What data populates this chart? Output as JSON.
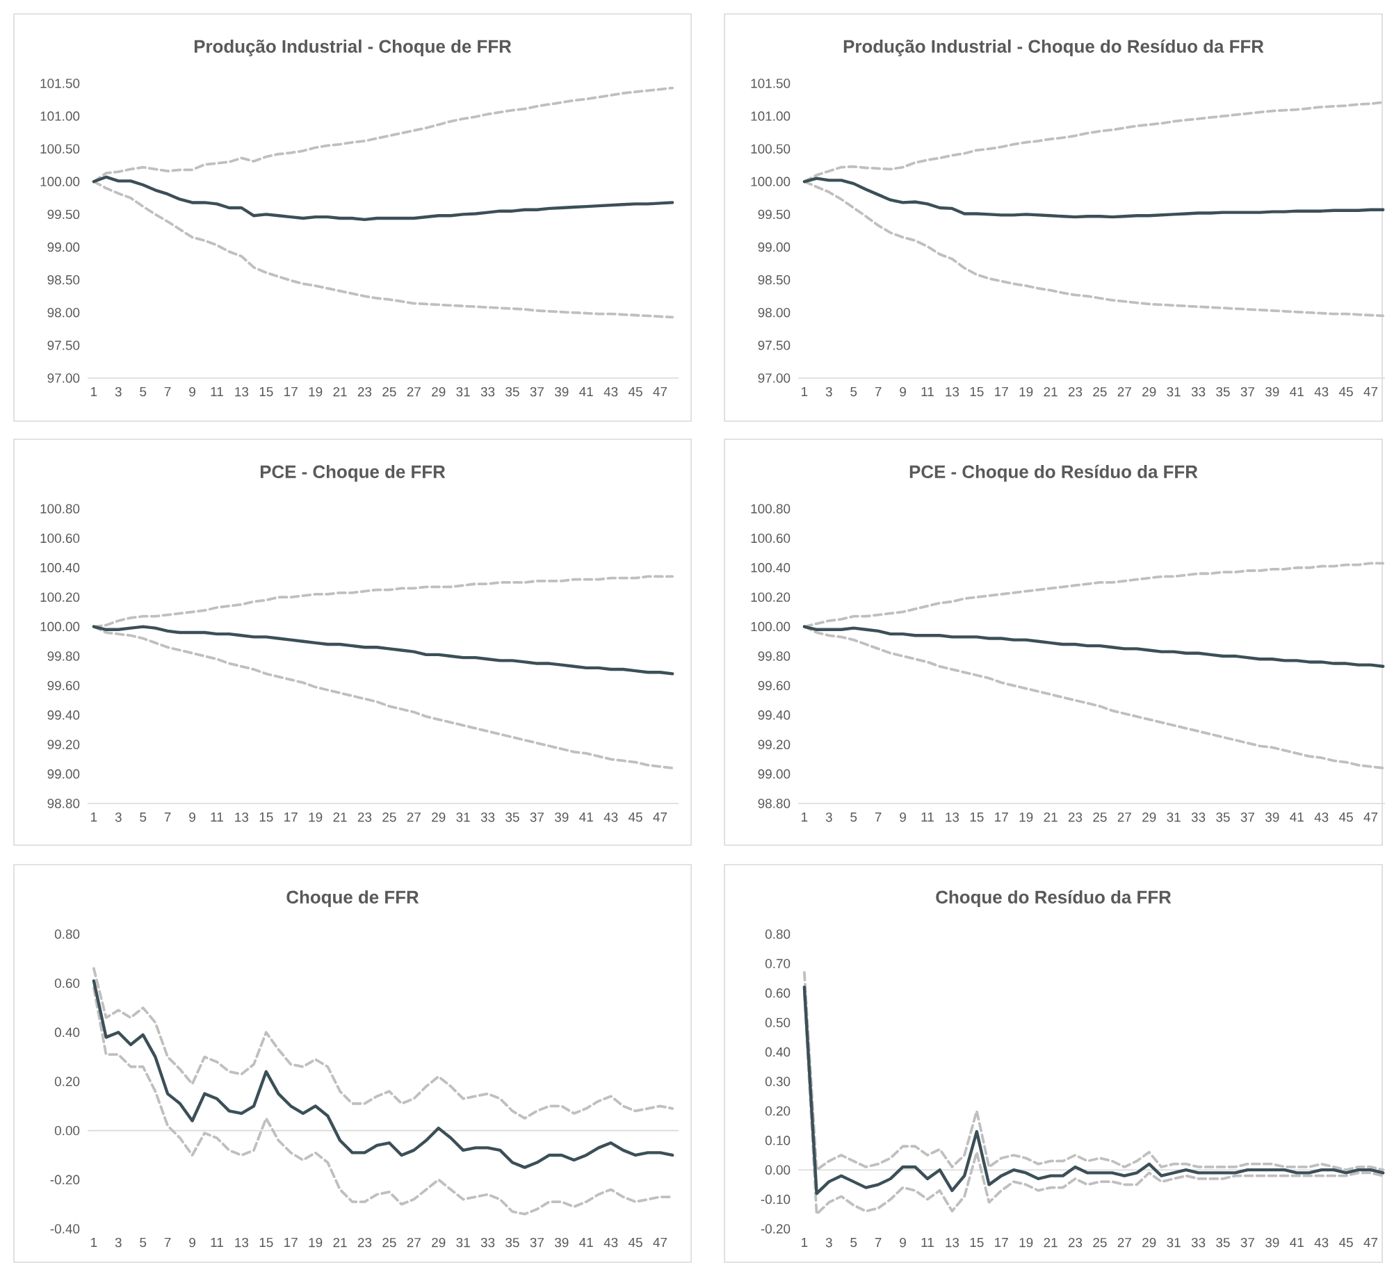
{
  "chart_data": [
    {
      "type": "line",
      "title": "Produção Industrial - Choque de FFR",
      "categories": [
        "1",
        null,
        "3",
        null,
        "5",
        null,
        "7",
        null,
        "9",
        null,
        "11",
        null,
        "13",
        null,
        "15",
        null,
        "17",
        null,
        "19",
        null,
        "21",
        null,
        "23",
        null,
        "25",
        null,
        "27",
        null,
        "29",
        null,
        "31",
        null,
        "33",
        null,
        "35",
        null,
        "37",
        null,
        "39",
        null,
        "41",
        null,
        "43",
        null,
        "45",
        null,
        "47",
        null
      ],
      "ylim": [
        97,
        101.5
      ],
      "yticks": [
        {
          "value": 97,
          "label": "97.00"
        },
        {
          "value": 97.5,
          "label": "97.50"
        },
        {
          "value": 98,
          "label": "98.00"
        },
        {
          "value": 98.5,
          "label": "98.50"
        },
        {
          "value": 99,
          "label": "99.00"
        },
        {
          "value": 99.5,
          "label": "99.50"
        },
        {
          "value": 100,
          "label": "100.00"
        },
        {
          "value": 100.5,
          "label": "100.50"
        },
        {
          "value": 101,
          "label": "101.00"
        },
        {
          "value": 101.5,
          "label": "101.50"
        }
      ],
      "series": [
        {
          "color": "#bfbfbf",
          "line_style": "dashed",
          "values": [
            100,
            100.13,
            100.15,
            100.19,
            100.22,
            100.19,
            100.16,
            100.18,
            100.18,
            100.26,
            100.28,
            100.3,
            100.36,
            100.31,
            100.38,
            100.42,
            100.44,
            100.47,
            100.52,
            100.55,
            100.57,
            100.6,
            100.62,
            100.66,
            100.7,
            100.74,
            100.78,
            100.82,
            100.87,
            100.92,
            100.96,
            100.99,
            101.03,
            101.06,
            101.09,
            101.11,
            101.15,
            101.18,
            101.21,
            101.24,
            101.26,
            101.29,
            101.32,
            101.35,
            101.37,
            101.39,
            101.41,
            101.43
          ]
        },
        {
          "color": "#bfbfbf",
          "line_style": "dashed",
          "values": [
            100,
            99.9,
            99.82,
            99.75,
            99.62,
            99.5,
            99.39,
            99.27,
            99.15,
            99.1,
            99.03,
            98.93,
            98.86,
            98.69,
            98.61,
            98.55,
            98.49,
            98.44,
            98.41,
            98.37,
            98.33,
            98.29,
            98.25,
            98.22,
            98.2,
            98.17,
            98.14,
            98.13,
            98.12,
            98.11,
            98.1,
            98.09,
            98.08,
            98.07,
            98.06,
            98.05,
            98.03,
            98.02,
            98.01,
            98.0,
            97.99,
            97.98,
            97.98,
            97.97,
            97.96,
            97.95,
            97.94,
            97.93
          ]
        },
        {
          "color": "#3b4f57",
          "line_style": "solid",
          "values": [
            100,
            100.07,
            100.01,
            100.01,
            99.95,
            99.87,
            99.81,
            99.73,
            99.68,
            99.68,
            99.66,
            99.6,
            99.6,
            99.48,
            99.5,
            99.48,
            99.46,
            99.44,
            99.46,
            99.46,
            99.44,
            99.44,
            99.42,
            99.44,
            99.44,
            99.44,
            99.44,
            99.46,
            99.48,
            99.48,
            99.5,
            99.51,
            99.53,
            99.55,
            99.55,
            99.57,
            99.57,
            99.59,
            99.6,
            99.61,
            99.62,
            99.63,
            99.64,
            99.65,
            99.66,
            99.66,
            99.67,
            99.68
          ]
        }
      ]
    },
    {
      "type": "line",
      "title": "Produção Industrial - Choque do Resíduo da FFR",
      "categories": [
        "1",
        null,
        "3",
        null,
        "5",
        null,
        "7",
        null,
        "9",
        null,
        "11",
        null,
        "13",
        null,
        "15",
        null,
        "17",
        null,
        "19",
        null,
        "21",
        null,
        "23",
        null,
        "25",
        null,
        "27",
        null,
        "29",
        null,
        "31",
        null,
        "33",
        null,
        "35",
        null,
        "37",
        null,
        "39",
        null,
        "41",
        null,
        "43",
        null,
        "45",
        null,
        "47",
        null
      ],
      "ylim": [
        97,
        101.5
      ],
      "yticks": [
        {
          "value": 97,
          "label": "97.00"
        },
        {
          "value": 97.5,
          "label": "97.50"
        },
        {
          "value": 98,
          "label": "98.00"
        },
        {
          "value": 98.5,
          "label": "98.50"
        },
        {
          "value": 99,
          "label": "99.00"
        },
        {
          "value": 99.5,
          "label": "99.50"
        },
        {
          "value": 100,
          "label": "100.00"
        },
        {
          "value": 100.5,
          "label": "100.50"
        },
        {
          "value": 101,
          "label": "101.00"
        },
        {
          "value": 101.5,
          "label": "101.50"
        }
      ],
      "series": [
        {
          "color": "#bfbfbf",
          "line_style": "dashed",
          "values": [
            100,
            100.1,
            100.16,
            100.22,
            100.23,
            100.21,
            100.2,
            100.19,
            100.22,
            100.29,
            100.33,
            100.36,
            100.4,
            100.43,
            100.48,
            100.5,
            100.53,
            100.57,
            100.6,
            100.62,
            100.65,
            100.67,
            100.7,
            100.74,
            100.77,
            100.79,
            100.82,
            100.85,
            100.87,
            100.89,
            100.92,
            100.94,
            100.96,
            100.98,
            101.0,
            101.02,
            101.04,
            101.06,
            101.08,
            101.09,
            101.1,
            101.12,
            101.14,
            101.15,
            101.16,
            101.18,
            101.19,
            101.21
          ]
        },
        {
          "color": "#bfbfbf",
          "line_style": "dashed",
          "values": [
            100,
            99.92,
            99.84,
            99.73,
            99.6,
            99.47,
            99.33,
            99.22,
            99.15,
            99.1,
            99.01,
            98.89,
            98.82,
            98.68,
            98.58,
            98.52,
            98.48,
            98.44,
            98.41,
            98.37,
            98.34,
            98.3,
            98.27,
            98.25,
            98.22,
            98.19,
            98.17,
            98.15,
            98.13,
            98.12,
            98.11,
            98.1,
            98.09,
            98.08,
            98.07,
            98.06,
            98.05,
            98.04,
            98.03,
            98.02,
            98.01,
            98.0,
            97.99,
            97.98,
            97.98,
            97.97,
            97.96,
            97.95
          ]
        },
        {
          "color": "#3b4f57",
          "line_style": "solid",
          "values": [
            100,
            100.05,
            100.02,
            100.02,
            99.97,
            99.88,
            99.8,
            99.72,
            99.68,
            99.69,
            99.66,
            99.6,
            99.59,
            99.51,
            99.51,
            99.5,
            99.49,
            99.49,
            99.5,
            99.49,
            99.48,
            99.47,
            99.46,
            99.47,
            99.47,
            99.46,
            99.47,
            99.48,
            99.48,
            99.49,
            99.5,
            99.51,
            99.52,
            99.52,
            99.53,
            99.53,
            99.53,
            99.53,
            99.54,
            99.54,
            99.55,
            99.55,
            99.55,
            99.56,
            99.56,
            99.56,
            99.57,
            99.57
          ]
        }
      ]
    },
    {
      "type": "line",
      "title": "PCE - Choque de FFR",
      "categories": [
        "1",
        null,
        "3",
        null,
        "5",
        null,
        "7",
        null,
        "9",
        null,
        "11",
        null,
        "13",
        null,
        "15",
        null,
        "17",
        null,
        "19",
        null,
        "21",
        null,
        "23",
        null,
        "25",
        null,
        "27",
        null,
        "29",
        null,
        "31",
        null,
        "33",
        null,
        "35",
        null,
        "37",
        null,
        "39",
        null,
        "41",
        null,
        "43",
        null,
        "45",
        null,
        "47",
        null
      ],
      "ylim": [
        98.8,
        100.8
      ],
      "yticks": [
        {
          "value": 98.8,
          "label": "98.80"
        },
        {
          "value": 99,
          "label": "99.00"
        },
        {
          "value": 99.2,
          "label": "99.20"
        },
        {
          "value": 99.4,
          "label": "99.40"
        },
        {
          "value": 99.6,
          "label": "99.60"
        },
        {
          "value": 99.8,
          "label": "99.80"
        },
        {
          "value": 100,
          "label": "100.00"
        },
        {
          "value": 100.2,
          "label": "100.20"
        },
        {
          "value": 100.4,
          "label": "100.40"
        },
        {
          "value": 100.6,
          "label": "100.60"
        },
        {
          "value": 100.8,
          "label": "100.80"
        }
      ],
      "series": [
        {
          "color": "#bfbfbf",
          "line_style": "dashed",
          "values": [
            100,
            100.01,
            100.04,
            100.06,
            100.07,
            100.07,
            100.08,
            100.09,
            100.1,
            100.11,
            100.13,
            100.14,
            100.15,
            100.17,
            100.18,
            100.2,
            100.2,
            100.21,
            100.22,
            100.22,
            100.23,
            100.23,
            100.24,
            100.25,
            100.25,
            100.26,
            100.26,
            100.27,
            100.27,
            100.27,
            100.28,
            100.29,
            100.29,
            100.3,
            100.3,
            100.3,
            100.31,
            100.31,
            100.31,
            100.32,
            100.32,
            100.32,
            100.33,
            100.33,
            100.33,
            100.34,
            100.34,
            100.34
          ]
        },
        {
          "color": "#bfbfbf",
          "line_style": "dashed",
          "values": [
            100,
            99.96,
            99.95,
            99.94,
            99.92,
            99.89,
            99.86,
            99.84,
            99.82,
            99.8,
            99.78,
            99.75,
            99.73,
            99.71,
            99.68,
            99.66,
            99.64,
            99.62,
            99.59,
            99.57,
            99.55,
            99.53,
            99.51,
            99.49,
            99.46,
            99.44,
            99.42,
            99.39,
            99.37,
            99.35,
            99.33,
            99.31,
            99.29,
            99.27,
            99.25,
            99.23,
            99.21,
            99.19,
            99.17,
            99.15,
            99.14,
            99.12,
            99.1,
            99.09,
            99.08,
            99.06,
            99.05,
            99.04
          ]
        },
        {
          "color": "#3b4f57",
          "line_style": "solid",
          "values": [
            100,
            99.98,
            99.98,
            99.99,
            100.0,
            99.99,
            99.97,
            99.96,
            99.96,
            99.96,
            99.95,
            99.95,
            99.94,
            99.93,
            99.93,
            99.92,
            99.91,
            99.9,
            99.89,
            99.88,
            99.88,
            99.87,
            99.86,
            99.86,
            99.85,
            99.84,
            99.83,
            99.81,
            99.81,
            99.8,
            99.79,
            99.79,
            99.78,
            99.77,
            99.77,
            99.76,
            99.75,
            99.75,
            99.74,
            99.73,
            99.72,
            99.72,
            99.71,
            99.71,
            99.7,
            99.69,
            99.69,
            99.68
          ]
        }
      ]
    },
    {
      "type": "line",
      "title": "PCE - Choque do Resíduo da FFR",
      "categories": [
        "1",
        null,
        "3",
        null,
        "5",
        null,
        "7",
        null,
        "9",
        null,
        "11",
        null,
        "13",
        null,
        "15",
        null,
        "17",
        null,
        "19",
        null,
        "21",
        null,
        "23",
        null,
        "25",
        null,
        "27",
        null,
        "29",
        null,
        "31",
        null,
        "33",
        null,
        "35",
        null,
        "37",
        null,
        "39",
        null,
        "41",
        null,
        "43",
        null,
        "45",
        null,
        "47",
        null
      ],
      "ylim": [
        98.8,
        100.8
      ],
      "yticks": [
        {
          "value": 98.8,
          "label": "98.80"
        },
        {
          "value": 99,
          "label": "99.00"
        },
        {
          "value": 99.2,
          "label": "99.20"
        },
        {
          "value": 99.4,
          "label": "99.40"
        },
        {
          "value": 99.6,
          "label": "99.60"
        },
        {
          "value": 99.8,
          "label": "99.80"
        },
        {
          "value": 100,
          "label": "100.00"
        },
        {
          "value": 100.2,
          "label": "100.20"
        },
        {
          "value": 100.4,
          "label": "100.40"
        },
        {
          "value": 100.6,
          "label": "100.60"
        },
        {
          "value": 100.8,
          "label": "100.80"
        }
      ],
      "series": [
        {
          "color": "#bfbfbf",
          "line_style": "dashed",
          "values": [
            100,
            100.02,
            100.04,
            100.05,
            100.07,
            100.07,
            100.08,
            100.09,
            100.1,
            100.12,
            100.14,
            100.16,
            100.17,
            100.19,
            100.2,
            100.21,
            100.22,
            100.23,
            100.24,
            100.25,
            100.26,
            100.27,
            100.28,
            100.29,
            100.3,
            100.3,
            100.31,
            100.32,
            100.33,
            100.34,
            100.34,
            100.35,
            100.36,
            100.36,
            100.37,
            100.37,
            100.38,
            100.38,
            100.39,
            100.39,
            100.4,
            100.4,
            100.41,
            100.41,
            100.42,
            100.42,
            100.43,
            100.43
          ]
        },
        {
          "color": "#bfbfbf",
          "line_style": "dashed",
          "values": [
            100,
            99.96,
            99.94,
            99.93,
            99.91,
            99.88,
            99.85,
            99.82,
            99.8,
            99.78,
            99.76,
            99.73,
            99.71,
            99.69,
            99.67,
            99.65,
            99.62,
            99.6,
            99.58,
            99.56,
            99.54,
            99.52,
            99.5,
            99.48,
            99.46,
            99.43,
            99.41,
            99.39,
            99.37,
            99.35,
            99.33,
            99.31,
            99.29,
            99.27,
            99.25,
            99.23,
            99.21,
            99.19,
            99.18,
            99.16,
            99.14,
            99.12,
            99.11,
            99.09,
            99.08,
            99.06,
            99.05,
            99.04
          ]
        },
        {
          "color": "#3b4f57",
          "line_style": "solid",
          "values": [
            100,
            99.98,
            99.98,
            99.98,
            99.99,
            99.98,
            99.97,
            99.95,
            99.95,
            99.94,
            99.94,
            99.94,
            99.93,
            99.93,
            99.93,
            99.92,
            99.92,
            99.91,
            99.91,
            99.9,
            99.89,
            99.88,
            99.88,
            99.87,
            99.87,
            99.86,
            99.85,
            99.85,
            99.84,
            99.83,
            99.83,
            99.82,
            99.82,
            99.81,
            99.8,
            99.8,
            99.79,
            99.78,
            99.78,
            99.77,
            99.77,
            99.76,
            99.76,
            99.75,
            99.75,
            99.74,
            99.74,
            99.73
          ]
        }
      ]
    },
    {
      "type": "line",
      "title": "Choque de FFR",
      "categories": [
        "1",
        null,
        "3",
        null,
        "5",
        null,
        "7",
        null,
        "9",
        null,
        "11",
        null,
        "13",
        null,
        "15",
        null,
        "17",
        null,
        "19",
        null,
        "21",
        null,
        "23",
        null,
        "25",
        null,
        "27",
        null,
        "29",
        null,
        "31",
        null,
        "33",
        null,
        "35",
        null,
        "37",
        null,
        "39",
        null,
        "41",
        null,
        "43",
        null,
        "45",
        null,
        "47",
        null
      ],
      "ylim": [
        -0.4,
        0.8
      ],
      "yticks": [
        {
          "value": -0.4,
          "label": "-0.40"
        },
        {
          "value": -0.2,
          "label": "-0.20"
        },
        {
          "value": 0,
          "label": "0.00"
        },
        {
          "value": 0.2,
          "label": "0.20"
        },
        {
          "value": 0.4,
          "label": "0.40"
        },
        {
          "value": 0.6,
          "label": "0.60"
        },
        {
          "value": 0.8,
          "label": "0.80"
        }
      ],
      "series": [
        {
          "color": "#bfbfbf",
          "line_style": "dashed",
          "values": [
            0.66,
            0.46,
            0.49,
            0.46,
            0.5,
            0.44,
            0.3,
            0.25,
            0.19,
            0.3,
            0.28,
            0.24,
            0.23,
            0.27,
            0.4,
            0.33,
            0.27,
            0.26,
            0.29,
            0.26,
            0.16,
            0.11,
            0.11,
            0.14,
            0.16,
            0.11,
            0.13,
            0.18,
            0.22,
            0.18,
            0.13,
            0.14,
            0.15,
            0.13,
            0.08,
            0.05,
            0.08,
            0.1,
            0.1,
            0.07,
            0.09,
            0.12,
            0.14,
            0.1,
            0.08,
            0.09,
            0.1,
            0.09
          ]
        },
        {
          "color": "#bfbfbf",
          "line_style": "dashed",
          "values": [
            0.58,
            0.31,
            0.31,
            0.26,
            0.26,
            0.16,
            0.02,
            -0.03,
            -0.1,
            -0.01,
            -0.03,
            -0.08,
            -0.1,
            -0.08,
            0.05,
            -0.04,
            -0.09,
            -0.12,
            -0.09,
            -0.13,
            -0.24,
            -0.29,
            -0.29,
            -0.26,
            -0.25,
            -0.3,
            -0.28,
            -0.24,
            -0.2,
            -0.24,
            -0.28,
            -0.27,
            -0.26,
            -0.28,
            -0.33,
            -0.34,
            -0.32,
            -0.29,
            -0.29,
            -0.31,
            -0.29,
            -0.26,
            -0.24,
            -0.27,
            -0.29,
            -0.28,
            -0.27,
            -0.27
          ]
        },
        {
          "color": "#3b4f57",
          "line_style": "solid",
          "values": [
            0.61,
            0.38,
            0.4,
            0.35,
            0.39,
            0.3,
            0.15,
            0.11,
            0.04,
            0.15,
            0.13,
            0.08,
            0.07,
            0.1,
            0.24,
            0.15,
            0.1,
            0.07,
            0.1,
            0.06,
            -0.04,
            -0.09,
            -0.09,
            -0.06,
            -0.05,
            -0.1,
            -0.08,
            -0.04,
            0.01,
            -0.03,
            -0.08,
            -0.07,
            -0.07,
            -0.08,
            -0.13,
            -0.15,
            -0.13,
            -0.1,
            -0.1,
            -0.12,
            -0.1,
            -0.07,
            -0.05,
            -0.08,
            -0.1,
            -0.09,
            -0.09,
            -0.1
          ]
        }
      ]
    },
    {
      "type": "line",
      "title": "Choque do Resíduo da FFR",
      "categories": [
        "1",
        null,
        "3",
        null,
        "5",
        null,
        "7",
        null,
        "9",
        null,
        "11",
        null,
        "13",
        null,
        "15",
        null,
        "17",
        null,
        "19",
        null,
        "21",
        null,
        "23",
        null,
        "25",
        null,
        "27",
        null,
        "29",
        null,
        "31",
        null,
        "33",
        null,
        "35",
        null,
        "37",
        null,
        "39",
        null,
        "41",
        null,
        "43",
        null,
        "45",
        null,
        "47",
        null
      ],
      "ylim": [
        -0.2,
        0.8
      ],
      "yticks": [
        {
          "value": -0.2,
          "label": "-0.20"
        },
        {
          "value": -0.1,
          "label": "-0.10"
        },
        {
          "value": 0,
          "label": "0.00"
        },
        {
          "value": 0.1,
          "label": "0.10"
        },
        {
          "value": 0.2,
          "label": "0.20"
        },
        {
          "value": 0.3,
          "label": "0.30"
        },
        {
          "value": 0.4,
          "label": "0.40"
        },
        {
          "value": 0.5,
          "label": "0.50"
        },
        {
          "value": 0.6,
          "label": "0.60"
        },
        {
          "value": 0.7,
          "label": "0.70"
        },
        {
          "value": 0.8,
          "label": "0.80"
        }
      ],
      "series": [
        {
          "color": "#bfbfbf",
          "line_style": "dashed",
          "values": [
            0.67,
            0.0,
            0.03,
            0.05,
            0.03,
            0.01,
            0.02,
            0.04,
            0.08,
            0.08,
            0.05,
            0.07,
            0.01,
            0.05,
            0.2,
            0.01,
            0.04,
            0.05,
            0.04,
            0.02,
            0.03,
            0.03,
            0.05,
            0.03,
            0.04,
            0.03,
            0.01,
            0.03,
            0.06,
            0.01,
            0.02,
            0.02,
            0.01,
            0.01,
            0.01,
            0.01,
            0.02,
            0.02,
            0.02,
            0.01,
            0.01,
            0.01,
            0.02,
            0.01,
            0.0,
            0.01,
            0.01,
            0.0
          ]
        },
        {
          "color": "#bfbfbf",
          "line_style": "dashed",
          "values": [
            0.6,
            -0.15,
            -0.11,
            -0.09,
            -0.12,
            -0.14,
            -0.13,
            -0.1,
            -0.06,
            -0.07,
            -0.1,
            -0.07,
            -0.14,
            -0.09,
            0.06,
            -0.11,
            -0.07,
            -0.04,
            -0.05,
            -0.07,
            -0.06,
            -0.06,
            -0.03,
            -0.05,
            -0.04,
            -0.04,
            -0.05,
            -0.05,
            -0.01,
            -0.04,
            -0.03,
            -0.02,
            -0.03,
            -0.03,
            -0.03,
            -0.02,
            -0.02,
            -0.02,
            -0.02,
            -0.02,
            -0.02,
            -0.02,
            -0.02,
            -0.02,
            -0.02,
            -0.01,
            -0.01,
            -0.02
          ]
        },
        {
          "color": "#3b4f57",
          "line_style": "solid",
          "values": [
            0.62,
            -0.08,
            -0.04,
            -0.02,
            -0.04,
            -0.06,
            -0.05,
            -0.03,
            0.01,
            0.01,
            -0.03,
            0.0,
            -0.07,
            -0.02,
            0.13,
            -0.05,
            -0.02,
            0.0,
            -0.01,
            -0.03,
            -0.02,
            -0.02,
            0.01,
            -0.01,
            -0.01,
            -0.01,
            -0.02,
            -0.01,
            0.02,
            -0.02,
            -0.01,
            0.0,
            -0.01,
            -0.01,
            -0.01,
            -0.01,
            0.0,
            0.0,
            0.0,
            0.0,
            -0.01,
            -0.01,
            0.0,
            0.0,
            -0.01,
            0.0,
            0.0,
            -0.01
          ]
        }
      ]
    }
  ]
}
